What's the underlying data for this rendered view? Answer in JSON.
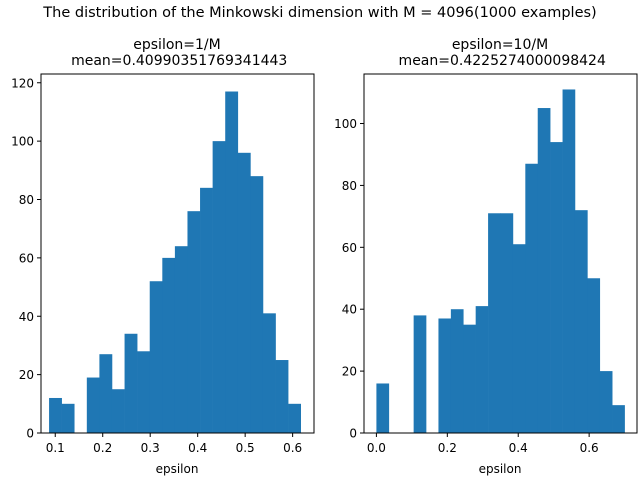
{
  "suptitle": "The distribution of the Minkowski dimension with M = 4096(1000 examples)",
  "chart_data": [
    {
      "type": "bar",
      "title_line1": "epsilon=1/M",
      "title_line2": " mean=0.40990351769341443",
      "xlabel": "epsilon",
      "ylabel": "",
      "xlim": [
        0.07,
        0.645
      ],
      "ylim": [
        0,
        123
      ],
      "xticks": [
        0.1,
        0.2,
        0.3,
        0.4,
        0.5,
        0.6
      ],
      "xtick_labels": [
        "0.1",
        "0.2",
        "0.3",
        "0.4",
        "0.5",
        "0.6"
      ],
      "yticks": [
        0,
        20,
        40,
        60,
        80,
        100,
        120
      ],
      "ytick_labels": [
        "0",
        "20",
        "40",
        "60",
        "80",
        "100",
        "120"
      ],
      "bin_edges": [
        0.087,
        0.1135,
        0.14,
        0.1665,
        0.193,
        0.2195,
        0.246,
        0.2725,
        0.299,
        0.3255,
        0.352,
        0.3785,
        0.405,
        0.4315,
        0.458,
        0.4845,
        0.511,
        0.5375,
        0.564,
        0.5905,
        0.617
      ],
      "values": [
        12,
        10,
        0,
        19,
        27,
        15,
        34,
        28,
        52,
        60,
        64,
        76,
        84,
        100,
        117,
        96,
        88,
        41,
        25,
        10
      ],
      "grid": false,
      "color": "#1f77b4"
    },
    {
      "type": "bar",
      "title_line1": "epsilon=10/M",
      "title_line2": " mean=0.4225274000098424",
      "xlabel": "epsilon",
      "ylabel": "",
      "xlim": [
        -0.035,
        0.735
      ],
      "ylim": [
        0,
        116
      ],
      "xticks": [
        0.0,
        0.2,
        0.4,
        0.6
      ],
      "xtick_labels": [
        "0.0",
        "0.2",
        "0.4",
        "0.6"
      ],
      "yticks": [
        0,
        20,
        40,
        60,
        80,
        100
      ],
      "ytick_labels": [
        "0",
        "20",
        "40",
        "60",
        "80",
        "100"
      ],
      "bin_edges": [
        0.0,
        0.035,
        0.07,
        0.105,
        0.14,
        0.175,
        0.21,
        0.245,
        0.28,
        0.315,
        0.35,
        0.385,
        0.42,
        0.455,
        0.49,
        0.525,
        0.56,
        0.595,
        0.63,
        0.665,
        0.7
      ],
      "values": [
        16,
        0,
        0,
        38,
        0,
        37,
        40,
        35,
        41,
        71,
        71,
        61,
        87,
        105,
        94,
        111,
        72,
        50,
        20,
        9
      ],
      "grid": false,
      "color": "#1f77b4"
    }
  ]
}
